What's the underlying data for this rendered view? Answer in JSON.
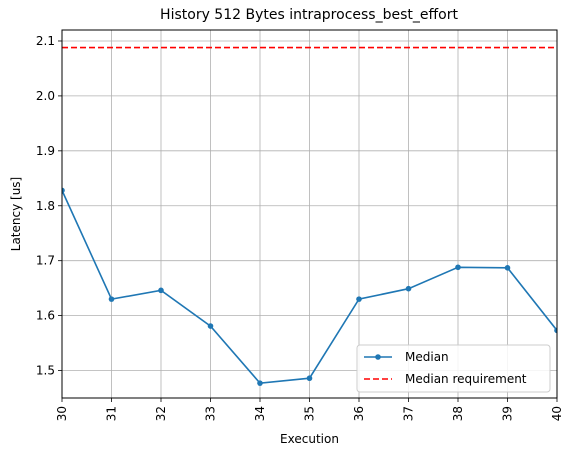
{
  "chart_data": {
    "type": "line",
    "title": "History 512 Bytes intraprocess_best_effort",
    "xlabel": "Execution",
    "ylabel": "Latency [us]",
    "xlim": [
      30,
      40
    ],
    "ylim": [
      1.45,
      2.12
    ],
    "x_ticks": [
      "30",
      "31",
      "32",
      "33",
      "34",
      "35",
      "36",
      "37",
      "38",
      "39",
      "40"
    ],
    "y_ticks": [
      "1.5",
      "1.6",
      "1.7",
      "1.8",
      "1.9",
      "2.0",
      "2.1"
    ],
    "grid": true,
    "legend_position": "lower-right",
    "series": [
      {
        "name": "Median",
        "color": "#1f77b4",
        "style": "solid-line-with-dots",
        "x": [
          30,
          31,
          32,
          33,
          34,
          35,
          36,
          37,
          38,
          39,
          40
        ],
        "values": [
          1.828,
          1.63,
          1.646,
          1.581,
          1.477,
          1.486,
          1.63,
          1.649,
          1.688,
          1.687,
          1.573
        ]
      },
      {
        "name": "Median requirement",
        "color": "#ff0000",
        "style": "dashed",
        "x": [
          30,
          40
        ],
        "values": [
          2.088,
          2.088
        ]
      }
    ]
  }
}
